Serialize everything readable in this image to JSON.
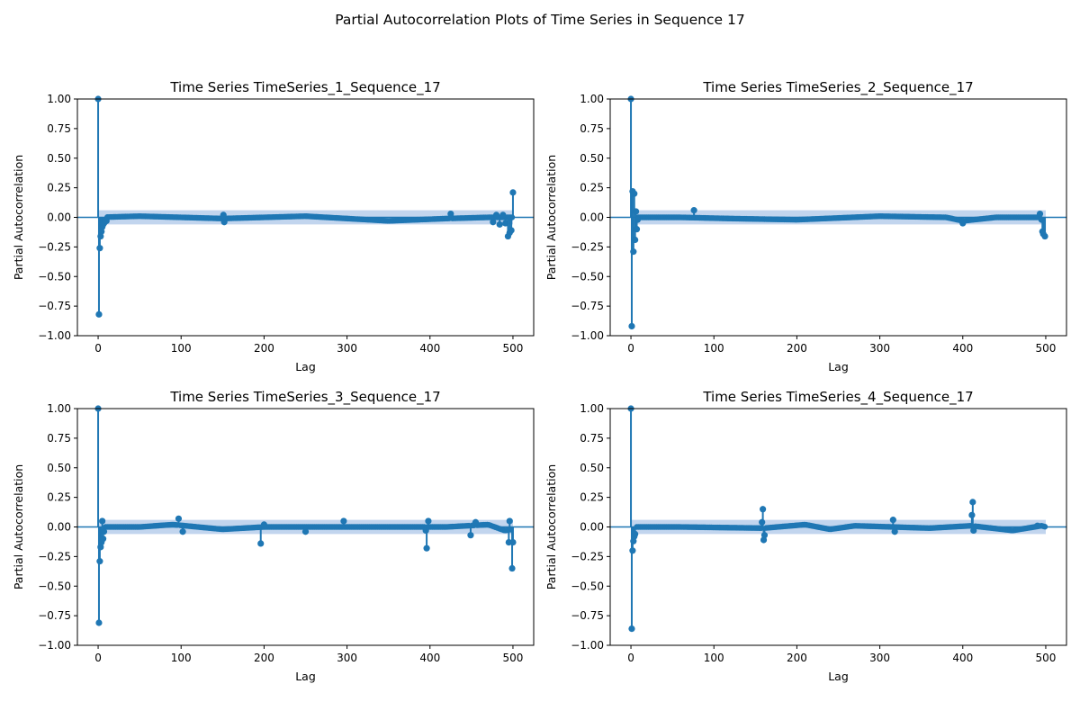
{
  "figure": {
    "title": "Partial Autocorrelation Plots of Time Series in Sequence 17"
  },
  "colors": {
    "stem": "#1f77b4",
    "confidence_band": "#aec7e8",
    "zero_line": "#1f77b4"
  },
  "chart_data": [
    {
      "type": "scatter",
      "style": "stem",
      "title": "Time Series TimeSeries_1_Sequence_17",
      "xlabel": "Lag",
      "ylabel": "Partial Autocorrelation",
      "xlim": [
        -25,
        525
      ],
      "ylim": [
        -1.0,
        1.0
      ],
      "xticks": [
        0,
        100,
        200,
        300,
        400,
        500
      ],
      "yticks": [
        -1.0,
        -0.75,
        -0.5,
        -0.25,
        0.0,
        0.25,
        0.5,
        0.75,
        1.0
      ],
      "confidence_band": 0.06,
      "points": [
        [
          0,
          1.0
        ],
        [
          1,
          -0.82
        ],
        [
          2,
          -0.26
        ],
        [
          3,
          -0.16
        ],
        [
          4,
          -0.12
        ],
        [
          5,
          -0.08
        ],
        [
          6,
          -0.06
        ],
        [
          7,
          -0.05
        ],
        [
          8,
          -0.04
        ],
        [
          9,
          -0.03
        ],
        [
          10,
          -0.03
        ],
        [
          151,
          0.02
        ],
        [
          152,
          -0.04
        ],
        [
          425,
          0.03
        ],
        [
          476,
          -0.04
        ],
        [
          480,
          0.02
        ],
        [
          484,
          -0.06
        ],
        [
          488,
          0.02
        ],
        [
          491,
          -0.05
        ],
        [
          494,
          -0.16
        ],
        [
          496,
          -0.13
        ],
        [
          498,
          -0.11
        ],
        [
          500,
          0.21
        ]
      ],
      "baseline_wave": [
        [
          0,
          0
        ],
        [
          50,
          0.01
        ],
        [
          150,
          -0.01
        ],
        [
          250,
          0.01
        ],
        [
          350,
          -0.03
        ],
        [
          420,
          -0.01
        ],
        [
          470,
          0.0
        ],
        [
          500,
          0.0
        ]
      ]
    },
    {
      "type": "scatter",
      "style": "stem",
      "title": "Time Series TimeSeries_2_Sequence_17",
      "xlabel": "Lag",
      "ylabel": "Partial Autocorrelation",
      "xlim": [
        -25,
        525
      ],
      "ylim": [
        -1.0,
        1.0
      ],
      "xticks": [
        0,
        100,
        200,
        300,
        400,
        500
      ],
      "yticks": [
        -1.0,
        -0.75,
        -0.5,
        -0.25,
        0.0,
        0.25,
        0.5,
        0.75,
        1.0
      ],
      "confidence_band": 0.06,
      "points": [
        [
          0,
          1.0
        ],
        [
          1,
          -0.92
        ],
        [
          2,
          0.22
        ],
        [
          3,
          -0.29
        ],
        [
          4,
          0.2
        ],
        [
          5,
          -0.19
        ],
        [
          6,
          0.05
        ],
        [
          7,
          -0.1
        ],
        [
          8,
          -0.02
        ],
        [
          76,
          0.06
        ],
        [
          400,
          -0.05
        ],
        [
          493,
          0.03
        ],
        [
          495,
          -0.02
        ],
        [
          496,
          -0.12
        ],
        [
          497,
          -0.14
        ],
        [
          499,
          -0.16
        ]
      ],
      "baseline_wave": [
        [
          0,
          0
        ],
        [
          60,
          0.0
        ],
        [
          120,
          -0.01
        ],
        [
          200,
          -0.02
        ],
        [
          300,
          0.01
        ],
        [
          380,
          0.0
        ],
        [
          400,
          -0.03
        ],
        [
          440,
          0.0
        ],
        [
          500,
          0.0
        ]
      ]
    },
    {
      "type": "scatter",
      "style": "stem",
      "title": "Time Series TimeSeries_3_Sequence_17",
      "xlabel": "Lag",
      "ylabel": "Partial Autocorrelation",
      "xlim": [
        -25,
        525
      ],
      "ylim": [
        -1.0,
        1.0
      ],
      "xticks": [
        0,
        100,
        200,
        300,
        400,
        500
      ],
      "yticks": [
        -1.0,
        -0.75,
        -0.5,
        -0.25,
        0.0,
        0.25,
        0.5,
        0.75,
        1.0
      ],
      "confidence_band": 0.06,
      "points": [
        [
          0,
          1.0
        ],
        [
          1,
          -0.81
        ],
        [
          2,
          -0.29
        ],
        [
          3,
          -0.17
        ],
        [
          4,
          -0.13
        ],
        [
          5,
          0.05
        ],
        [
          6,
          -0.1
        ],
        [
          7,
          -0.04
        ],
        [
          97,
          0.07
        ],
        [
          102,
          -0.04
        ],
        [
          196,
          -0.14
        ],
        [
          200,
          0.02
        ],
        [
          250,
          -0.04
        ],
        [
          296,
          0.05
        ],
        [
          395,
          -0.03
        ],
        [
          396,
          -0.18
        ],
        [
          398,
          0.05
        ],
        [
          449,
          -0.07
        ],
        [
          455,
          0.04
        ],
        [
          495,
          -0.13
        ],
        [
          496,
          0.05
        ],
        [
          499,
          -0.35
        ],
        [
          500,
          -0.13
        ]
      ],
      "baseline_wave": [
        [
          0,
          0
        ],
        [
          50,
          0.0
        ],
        [
          90,
          0.02
        ],
        [
          150,
          -0.02
        ],
        [
          200,
          0.0
        ],
        [
          300,
          0.0
        ],
        [
          420,
          0.0
        ],
        [
          470,
          0.02
        ],
        [
          490,
          -0.03
        ],
        [
          500,
          -0.02
        ]
      ]
    },
    {
      "type": "scatter",
      "style": "stem",
      "title": "Time Series TimeSeries_4_Sequence_17",
      "xlabel": "Lag",
      "ylabel": "Partial Autocorrelation",
      "xlim": [
        -25,
        525
      ],
      "ylim": [
        -1.0,
        1.0
      ],
      "xticks": [
        0,
        100,
        200,
        300,
        400,
        500
      ],
      "yticks": [
        -1.0,
        -0.75,
        -0.5,
        -0.25,
        0.0,
        0.25,
        0.5,
        0.75,
        1.0
      ],
      "confidence_band": 0.06,
      "points": [
        [
          0,
          1.0
        ],
        [
          1,
          -0.86
        ],
        [
          2,
          -0.2
        ],
        [
          3,
          -0.12
        ],
        [
          4,
          -0.08
        ],
        [
          5,
          -0.06
        ],
        [
          158,
          0.04
        ],
        [
          159,
          0.15
        ],
        [
          160,
          -0.11
        ],
        [
          161,
          -0.07
        ],
        [
          316,
          0.06
        ],
        [
          318,
          -0.04
        ],
        [
          411,
          0.1
        ],
        [
          412,
          0.21
        ],
        [
          413,
          -0.03
        ],
        [
          490,
          0.01
        ]
      ],
      "baseline_wave": [
        [
          0,
          0
        ],
        [
          60,
          0.0
        ],
        [
          160,
          -0.01
        ],
        [
          210,
          0.02
        ],
        [
          240,
          -0.02
        ],
        [
          270,
          0.01
        ],
        [
          360,
          -0.01
        ],
        [
          410,
          0.01
        ],
        [
          460,
          -0.03
        ],
        [
          495,
          0.01
        ],
        [
          500,
          0.0
        ]
      ]
    }
  ]
}
